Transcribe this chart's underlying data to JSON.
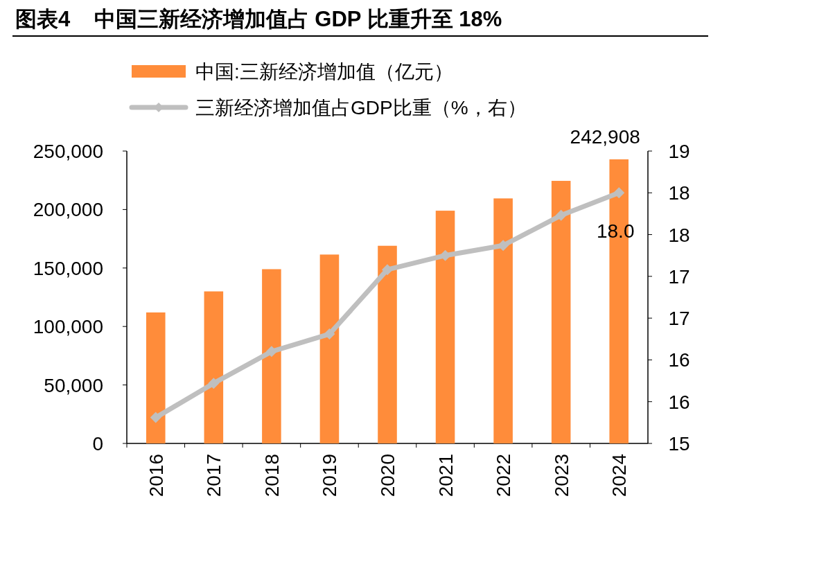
{
  "chart_data": {
    "type": "bar",
    "title": "图表4    中国三新经济增加值占 GDP 比重升至 18%",
    "categories": [
      "2016",
      "2017",
      "2018",
      "2019",
      "2020",
      "2021",
      "2022",
      "2023",
      "2024"
    ],
    "series": [
      {
        "name": "中国:三新经济增加值（亿元）",
        "color": "#ff8c3a",
        "values": [
          112000,
          130000,
          149000,
          161500,
          169000,
          199000,
          209500,
          224500,
          242908
        ],
        "value_labels": [
          null,
          null,
          null,
          null,
          null,
          null,
          null,
          null,
          "242,908"
        ]
      },
      {
        "name": "三新经济增加值占GDP比重（%，右）",
        "type": "line",
        "axis": "y2",
        "color": "#bfbfbf",
        "marker": "diamond",
        "values": [
          15.31,
          15.72,
          16.1,
          16.31,
          17.08,
          17.25,
          17.37,
          17.73,
          18.0
        ],
        "value_labels": [
          null,
          null,
          null,
          null,
          null,
          null,
          null,
          null,
          "18.0"
        ]
      }
    ],
    "ylim": [
      0,
      250000
    ],
    "yticks": [
      {
        "value": 0,
        "label": "0"
      },
      {
        "value": 50000,
        "label": "50,000"
      },
      {
        "value": 100000,
        "label": "100,000"
      },
      {
        "value": 150000,
        "label": "150,000"
      },
      {
        "value": 200000,
        "label": "200,000"
      },
      {
        "value": 250000,
        "label": "250,000"
      }
    ],
    "y2lim": [
      15,
      18.5
    ],
    "y2ticks": [
      15,
      {
        "value": 15.5,
        "label": "16"
      },
      16,
      {
        "value": 16.5,
        "label": "17"
      },
      17,
      {
        "value": 17.5,
        "label": "18"
      },
      18,
      {
        "value": 18.5,
        "label": "19"
      }
    ],
    "legend": "top"
  }
}
